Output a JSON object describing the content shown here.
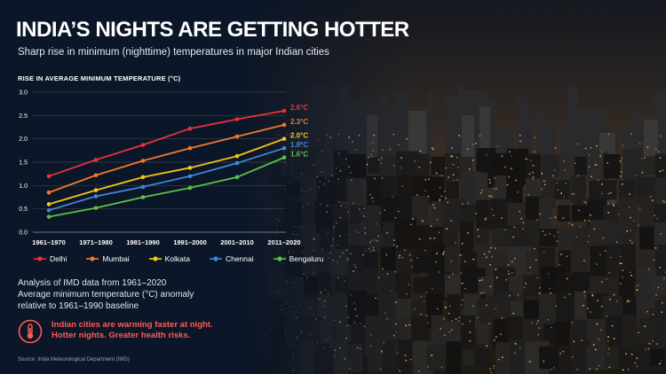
{
  "title": "INDIA’S NIGHTS ARE GETTING HOTTER",
  "subtitle": "Sharp rise in minimum (nighttime) temperatures in major Indian cities",
  "note": [
    "Analysis of IMD data from 1961–2020",
    "Average minimum temperature (°C) anomaly",
    "relative to 1961–1990 baseline"
  ],
  "insight": [
    "Indian cities are warming faster at night.",
    "Hotter nights. Greater health risks."
  ],
  "source": "Source: India Meteorological Department (IMD)",
  "icons": {
    "insight": "thermometer-icon"
  },
  "chart_data": {
    "type": "line",
    "ylabel": "RISE IN AVERAGE MINIMUM TEMPERATURE (°C)",
    "ylim": [
      0,
      3.0
    ],
    "yticks": [
      "0.0",
      "0.5",
      "1.0",
      "1.5",
      "2.0",
      "2.5",
      "3.0"
    ],
    "categories": [
      "1961–1970",
      "1971–1980",
      "1981–1990",
      "1991–2000",
      "2001–2010",
      "2011–2020"
    ],
    "grid": true,
    "legend_position": "bottom",
    "series": [
      {
        "name": "Delhi",
        "color": "#e8323c",
        "values": [
          1.2,
          1.55,
          1.87,
          2.22,
          2.42,
          2.6
        ],
        "end_label": "2.6°C"
      },
      {
        "name": "Mumbai",
        "color": "#f07a2a",
        "values": [
          0.85,
          1.22,
          1.53,
          1.8,
          2.05,
          2.3
        ],
        "end_label": "2.3°C"
      },
      {
        "name": "Kolkata",
        "color": "#f5c518",
        "values": [
          0.6,
          0.9,
          1.18,
          1.38,
          1.63,
          2.0
        ],
        "end_label": "2.0°C"
      },
      {
        "name": "Chennai",
        "color": "#3e86d6",
        "values": [
          0.47,
          0.77,
          0.97,
          1.2,
          1.48,
          1.8
        ],
        "end_label": "1.8°C"
      },
      {
        "name": "Bengaluru",
        "color": "#5cc04a",
        "values": [
          0.33,
          0.52,
          0.75,
          0.95,
          1.18,
          1.6
        ],
        "end_label": "1.6°C"
      }
    ]
  }
}
